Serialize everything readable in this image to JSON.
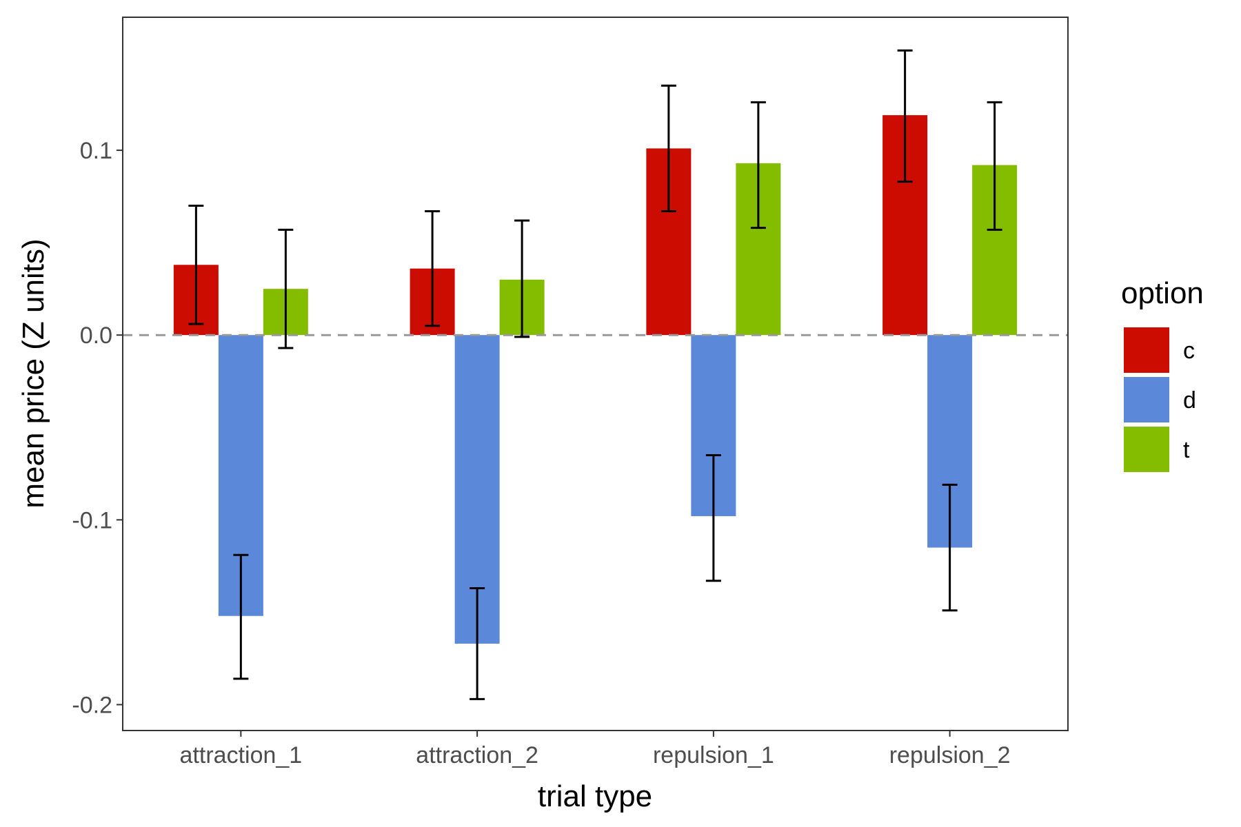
{
  "chart_data": {
    "type": "bar",
    "xlabel": "trial type",
    "ylabel": "mean price (Z units)",
    "categories": [
      "attraction_1",
      "attraction_2",
      "repulsion_1",
      "repulsion_2"
    ],
    "ylim": [
      -0.214,
      0.172
    ],
    "yticks": [
      -0.2,
      -0.1,
      0.0,
      0.1
    ],
    "ytick_labels": [
      "-0.2",
      "-0.1",
      "0.0",
      "0.1"
    ],
    "reference_line": {
      "y": 0,
      "style": "dashed",
      "color": "#999999"
    },
    "grid": false,
    "legend": {
      "title": "option",
      "position": "right"
    },
    "series": [
      {
        "name": "c",
        "color": "#CC0C00",
        "values": [
          0.038,
          0.036,
          0.101,
          0.119
        ],
        "error_low": [
          0.006,
          0.005,
          0.067,
          0.083
        ],
        "error_high": [
          0.07,
          0.067,
          0.135,
          0.154
        ]
      },
      {
        "name": "d",
        "color": "#5C88DA",
        "values": [
          -0.152,
          -0.167,
          -0.098,
          -0.115
        ],
        "error_low": [
          -0.186,
          -0.197,
          -0.133,
          -0.149
        ],
        "error_high": [
          -0.119,
          -0.137,
          -0.065,
          -0.081
        ]
      },
      {
        "name": "t",
        "color": "#84BD00",
        "values": [
          0.025,
          0.03,
          0.093,
          0.092
        ],
        "error_low": [
          -0.007,
          -0.001,
          0.058,
          0.057
        ],
        "error_high": [
          0.057,
          0.062,
          0.126,
          0.126
        ]
      }
    ]
  }
}
